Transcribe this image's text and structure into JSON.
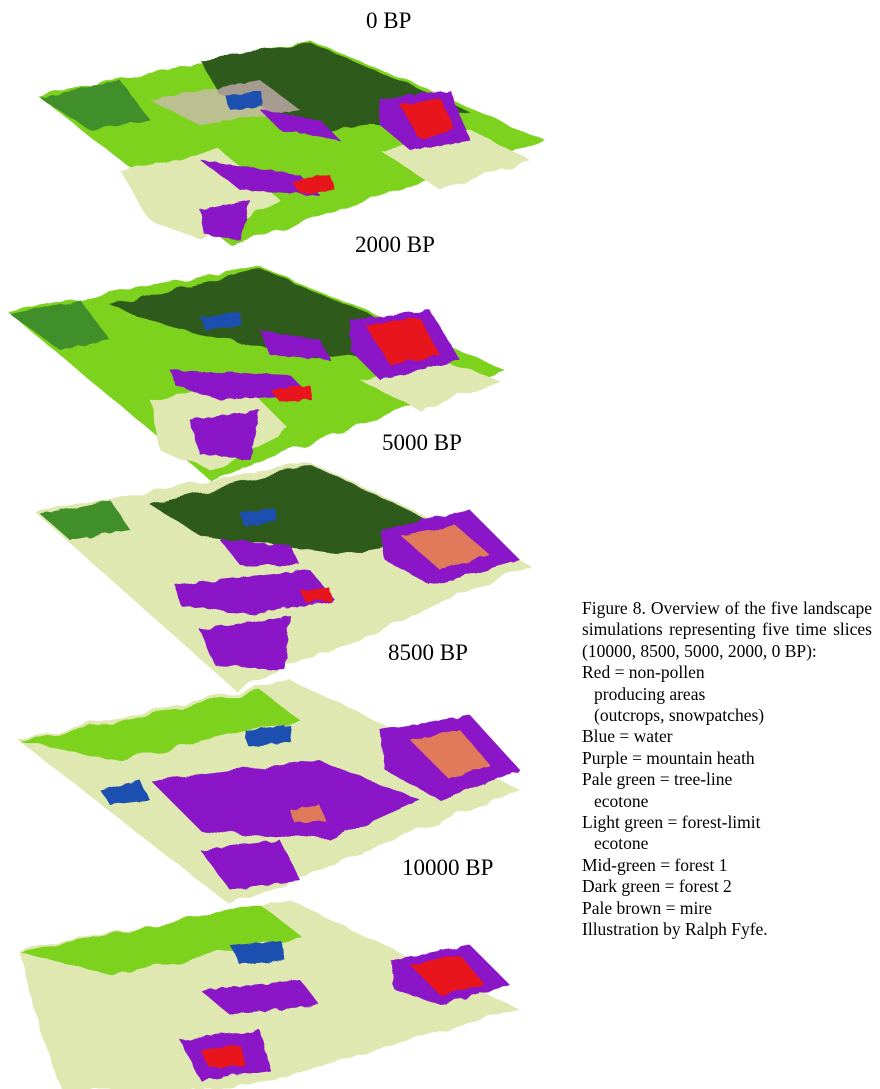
{
  "slices": [
    {
      "label": "0 BP"
    },
    {
      "label": "2000 BP"
    },
    {
      "label": "5000 BP"
    },
    {
      "label": "8500 BP"
    },
    {
      "label": "10000 BP"
    }
  ],
  "caption": {
    "lead": "Figure 8. Overview of the five landscape simulations representing five time slices (10000, 8500, 5000, 2000, 0 BP):",
    "legend": [
      {
        "first": "Red = non-pollen",
        "rest": [
          "producing areas",
          "(outcrops, snowpatches)"
        ],
        "color": "#e8121e"
      },
      {
        "first": "Blue = water",
        "rest": [],
        "color": "#1b4fb0"
      },
      {
        "first": "Purple = mountain heath",
        "rest": [],
        "color": "#8a14c8"
      },
      {
        "first": "Pale green = tree-line",
        "rest": [
          "ecotone"
        ],
        "color": "#dfe8b0"
      },
      {
        "first": "Light green = forest-limit",
        "rest": [
          "ecotone"
        ],
        "color": "#7bd21e"
      },
      {
        "first": "Mid-green = forest 1",
        "rest": [],
        "color": "#3f8f2a"
      },
      {
        "first": "Dark green = forest 2",
        "rest": [],
        "color": "#2f5a1e"
      },
      {
        "first": "Pale brown = mire",
        "rest": [],
        "color": "#d8b8c0"
      }
    ],
    "credit": "Illustration by Ralph Fyfe."
  }
}
